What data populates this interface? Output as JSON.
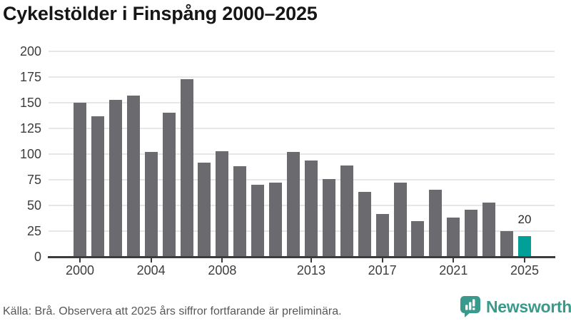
{
  "chart_data": {
    "type": "bar",
    "title": "Cykelstölder i Finspång 2000–2025",
    "categories": [
      2000,
      2001,
      2002,
      2003,
      2004,
      2005,
      2006,
      2007,
      2008,
      2009,
      2010,
      2011,
      2012,
      2013,
      2014,
      2015,
      2016,
      2017,
      2018,
      2019,
      2020,
      2021,
      2022,
      2023,
      2024,
      2025
    ],
    "values": [
      150,
      137,
      153,
      157,
      102,
      140,
      173,
      92,
      103,
      88,
      70,
      72,
      102,
      94,
      76,
      89,
      63,
      42,
      72,
      35,
      65,
      38,
      46,
      53,
      25,
      20
    ],
    "xlabel": "",
    "ylabel": "",
    "ylim": [
      0,
      200
    ],
    "yticks": [
      0,
      25,
      50,
      75,
      100,
      125,
      150,
      175,
      200
    ],
    "xtick_years": [
      2000,
      2004,
      2008,
      2013,
      2017,
      2021,
      2025
    ],
    "grid": true,
    "legend": false,
    "bar_color": "#6a6a6f",
    "highlight_year": 2025,
    "highlight_color": "#00a099",
    "highlight_value_label": "20"
  },
  "footer": {
    "source_note": "Källa: Brå. Observera att 2025 års siffror fortfarande är preliminära.",
    "brand": "Newsworthy"
  },
  "colors": {
    "background": "#ffffff",
    "title_text": "#161616",
    "axis_text": "#3d3d3d",
    "axis_line": "#3b3b3b",
    "gridline": "#e7e7e7",
    "footer_text": "#575757",
    "brand_teal": "#399a8b"
  }
}
